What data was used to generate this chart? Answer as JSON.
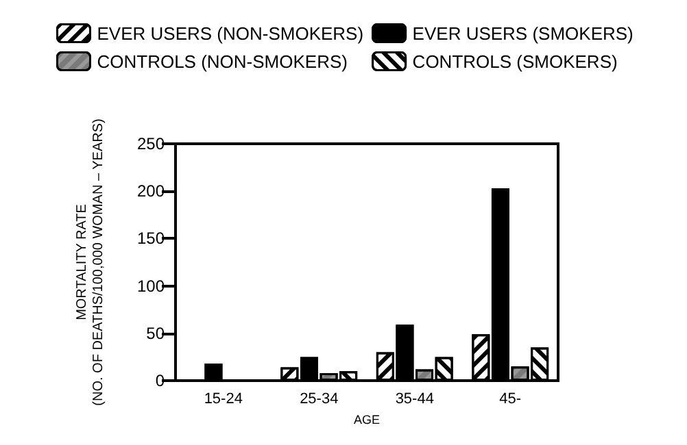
{
  "chart_data": {
    "type": "bar",
    "xlabel": "AGE",
    "ylabel": "MORTALITY RATE\n(NO. OF DEATHS/100,000 WOMAN – YEARS)",
    "categories": [
      "15-24",
      "25-34",
      "35-44",
      "45-"
    ],
    "series": [
      {
        "name": "EVER USERS (NON-SMOKERS)",
        "color": "#ffffff",
        "values": [
          null,
          14,
          30,
          49
        ]
      },
      {
        "name": "EVER USERS (SMOKERS)",
        "color": "#000000",
        "values": [
          18,
          25,
          59,
          203
        ]
      },
      {
        "name": "CONTROLS (NON-SMOKERS)",
        "color": "#999999",
        "values": [
          null,
          8,
          12,
          15
        ]
      },
      {
        "name": "CONTROLS (SMOKERS)",
        "color": "#ffffff",
        "values": [
          null,
          10,
          25,
          35
        ]
      }
    ],
    "ylim": [
      0,
      250
    ],
    "yticks": [
      0,
      50,
      100,
      150,
      200,
      250
    ],
    "grid": false,
    "legend": "top"
  }
}
